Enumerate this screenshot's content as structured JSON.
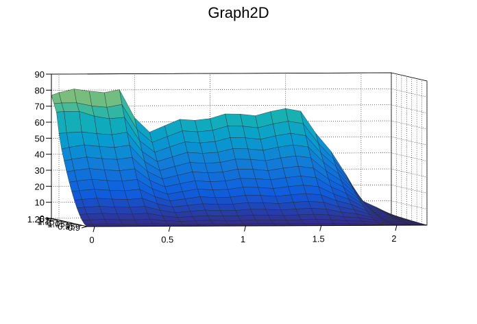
{
  "chart_data": {
    "type": "surface",
    "title": "Graph2D",
    "xlabel": "",
    "ylabel": "",
    "zlabel": "",
    "x_ticks": [
      "0",
      "0.5",
      "1",
      "1.5",
      "2"
    ],
    "y_ticks": [
      "0.9",
      "0.95",
      "1",
      "1.05",
      "1.1",
      "1.15",
      "1.2",
      "1.25"
    ],
    "z_ticks": [
      "0",
      "10",
      "20",
      "30",
      "40",
      "50",
      "60",
      "70",
      "80",
      "90"
    ],
    "xlim": [
      -0.05,
      2.2
    ],
    "ylim": [
      0.9,
      1.25
    ],
    "zlim": [
      0,
      90
    ],
    "grid": true,
    "colormap": "viridis-like (blue to yellow)",
    "surface": {
      "x_grid": [
        -0.05,
        0.0,
        0.1,
        0.2,
        0.3,
        0.4,
        0.5,
        0.6,
        0.7,
        0.8,
        0.9,
        1.0,
        1.1,
        1.2,
        1.3,
        1.4,
        1.5,
        1.6,
        1.7,
        1.8,
        1.9,
        2.0,
        2.1,
        2.2
      ],
      "y_grid": [
        0.9,
        0.925,
        0.95,
        0.975,
        1.0,
        1.025,
        1.05,
        1.075,
        1.1,
        1.125,
        1.15,
        1.175,
        1.2,
        1.225,
        1.25
      ],
      "front_edge_y": 0.9,
      "front_edge_z_range": [
        0,
        4
      ],
      "back_edge_y": 1.25,
      "back_edge_z_profile": [
        [
          -0.05,
          78
        ],
        [
          0.2,
          80
        ],
        [
          0.4,
          79
        ],
        [
          0.5,
          62
        ],
        [
          0.6,
          55
        ],
        [
          0.8,
          60
        ],
        [
          1.0,
          63
        ],
        [
          1.2,
          64
        ],
        [
          1.4,
          66
        ],
        [
          1.6,
          67
        ],
        [
          1.8,
          40
        ],
        [
          2.0,
          12
        ],
        [
          2.2,
          0
        ]
      ],
      "left_edge_z_profile": [
        [
          0.9,
          0
        ],
        [
          0.95,
          2
        ],
        [
          1.0,
          5
        ],
        [
          1.05,
          12
        ],
        [
          1.1,
          22
        ],
        [
          1.15,
          42
        ],
        [
          1.2,
          68
        ],
        [
          1.25,
          78
        ]
      ]
    }
  }
}
